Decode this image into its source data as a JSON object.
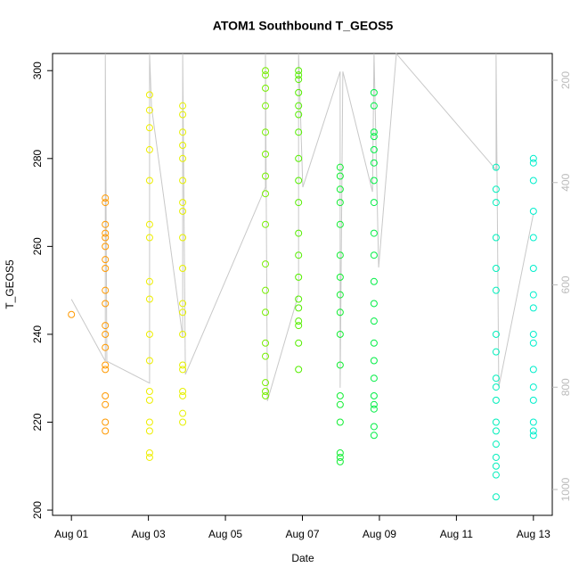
{
  "chart_data": {
    "type": "scatter",
    "title": "ATOM1 Southbound T_GEOS5",
    "x_label": "Date",
    "y_label": "T_GEOS5",
    "xlim": [
      -0.49,
      12.49
    ],
    "ylim": [
      198.8,
      303.9
    ],
    "y2lim": [
      1050.5,
      147.7
    ],
    "xticks": [
      {
        "value": 0,
        "label": "Aug 01"
      },
      {
        "value": 2,
        "label": "Aug 03"
      },
      {
        "value": 4,
        "label": "Aug 05"
      },
      {
        "value": 6,
        "label": "Aug 07"
      },
      {
        "value": 8,
        "label": "Aug 09"
      },
      {
        "value": 10,
        "label": "Aug 11"
      },
      {
        "value": 12,
        "label": "Aug 13"
      }
    ],
    "yticks": [
      200,
      220,
      240,
      260,
      280,
      300
    ],
    "y2ticks": [
      200,
      400,
      600,
      800,
      1000
    ],
    "series": [
      {
        "color": "#ff9900",
        "x": [
          0,
          0.88,
          0.88,
          0.88,
          0.88,
          0.88,
          0.88,
          0.88,
          0.88,
          0.88,
          0.88,
          0.88,
          0.88,
          0.88,
          0.88,
          0.88,
          0.88,
          0.88,
          0.88,
          0.88
        ],
        "values": [
          244.5,
          271,
          270,
          265,
          263,
          262,
          260,
          257,
          255,
          250,
          247,
          242,
          240,
          237,
          233,
          232,
          226,
          224,
          220,
          218
        ]
      },
      {
        "color": "#eeee00",
        "x": [
          2.03,
          2.03,
          2.03,
          2.03,
          2.03,
          2.03,
          2.03,
          2.03,
          2.03,
          2.03,
          2.03,
          2.03,
          2.03,
          2.03,
          2.03,
          2.03,
          2.03
        ],
        "values": [
          294.5,
          291,
          287,
          282,
          275,
          265,
          262,
          252,
          248,
          240,
          234,
          227,
          225,
          220,
          218,
          213,
          212
        ]
      },
      {
        "color": "#e6f000",
        "x": [
          2.89,
          2.89,
          2.89,
          2.89,
          2.89,
          2.89,
          2.89,
          2.89,
          2.89,
          2.89,
          2.89,
          2.89,
          2.89,
          2.89,
          2.89,
          2.89,
          2.89,
          2.89,
          2.89
        ],
        "values": [
          292,
          290,
          286,
          283,
          280,
          275,
          270,
          268,
          262,
          255,
          247,
          245,
          240,
          233,
          232,
          227,
          226,
          222,
          220
        ]
      },
      {
        "color": "#77ee00",
        "x": [
          5.04,
          5.04,
          5.04,
          5.04,
          5.04,
          5.04,
          5.04,
          5.04,
          5.04,
          5.04,
          5.04,
          5.04,
          5.04,
          5.04,
          5.04,
          5.04,
          5.04
        ],
        "values": [
          300,
          299,
          296,
          292,
          286,
          281,
          276,
          272,
          265,
          256,
          250,
          245,
          238,
          235,
          229,
          227,
          226
        ]
      },
      {
        "color": "#55ee00",
        "x": [
          5.9,
          5.9,
          5.9,
          5.9,
          5.9,
          5.9,
          5.9,
          5.9,
          5.9,
          5.9,
          5.9,
          5.9,
          5.9,
          5.9,
          5.9,
          5.9,
          5.9,
          5.9,
          5.9
        ],
        "values": [
          300,
          299,
          298,
          295,
          292,
          290,
          286,
          280,
          275,
          270,
          263,
          258,
          253,
          248,
          246,
          243,
          242,
          238,
          232
        ]
      },
      {
        "color": "#11ee33",
        "x": [
          6.98,
          6.98,
          6.98,
          6.98,
          6.98,
          6.98,
          6.98,
          6.98,
          6.98,
          6.98,
          6.98,
          6.98,
          6.98,
          6.98,
          6.98,
          6.98,
          6.98
        ],
        "values": [
          278,
          276,
          273,
          270,
          265,
          258,
          253,
          249,
          245,
          240,
          233,
          226,
          224,
          220,
          213,
          212,
          211
        ]
      },
      {
        "color": "#00ee44",
        "x": [
          7.86,
          7.86,
          7.86,
          7.86,
          7.86,
          7.86,
          7.86,
          7.86,
          7.86,
          7.86,
          7.86,
          7.86,
          7.86,
          7.86,
          7.86,
          7.86,
          7.86,
          7.86,
          7.86,
          7.86,
          7.86
        ],
        "values": [
          295,
          292,
          286,
          285,
          282,
          279,
          275,
          270,
          263,
          258,
          252,
          247,
          243,
          238,
          234,
          230,
          226,
          224,
          223,
          219,
          217
        ]
      },
      {
        "color": "#00eebb",
        "x": [
          11.03,
          11.03,
          11.03,
          11.03,
          11.03,
          11.03,
          11.03,
          11.03,
          11.03,
          11.03,
          11.03,
          11.03,
          11.03,
          11.03,
          11.03,
          11.03,
          11.03,
          11.03
        ],
        "values": [
          278,
          273,
          270,
          262,
          255,
          250,
          240,
          236,
          230,
          228,
          225,
          220,
          218,
          215,
          212,
          210,
          208,
          203
        ]
      },
      {
        "color": "#00eecc",
        "x": [
          12.0,
          12.0,
          12.0,
          12.0,
          12.0,
          12.0,
          12.0,
          12.0,
          12.0,
          12.0,
          12.0,
          12.0,
          12.0,
          12.0,
          12.0,
          12.0
        ],
        "values": [
          280,
          279,
          275,
          268,
          262,
          255,
          249,
          246,
          240,
          238,
          232,
          228,
          225,
          220,
          218,
          217
        ]
      },
      {
        "type": "line",
        "axis": "y2",
        "color": "#c8c8c8",
        "x": [
          0,
          0.88,
          0.88,
          0.92,
          2.03,
          2.03,
          2.08,
          2.89,
          2.89,
          2.96,
          5.04,
          5.04,
          5.09,
          5.9,
          5.9,
          6.01,
          6.98,
          6.98,
          7.05,
          7.82,
          7.86,
          7.98,
          8.44,
          11.03,
          11.03,
          11.1,
          12.0
        ],
        "values": [
          628,
          749,
          148,
          749,
          792,
          148,
          252,
          702,
          148,
          775,
          409,
          148,
          827,
          618,
          148,
          409,
          183,
          801,
          183,
          418,
          148,
          566,
          148,
          375,
          148,
          800,
          461
        ]
      }
    ]
  }
}
